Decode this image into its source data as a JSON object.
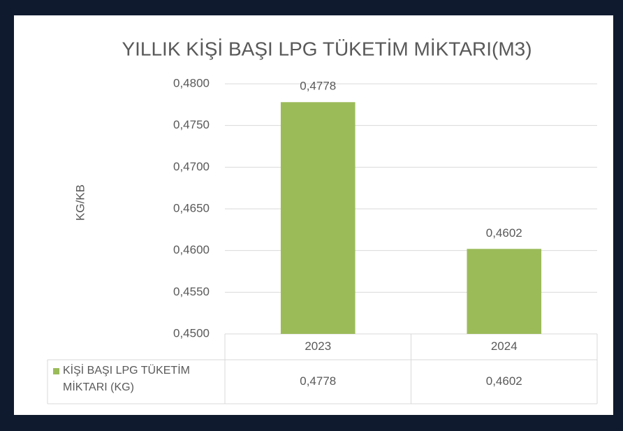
{
  "chart_data": {
    "type": "bar",
    "title": "YILLIK KİŞİ BAŞI LPG TÜKETİM MİKTARI(M3)",
    "y_label": "KG/KB",
    "categories": [
      "2023",
      "2024"
    ],
    "series": [
      {
        "name": "KİŞİ BAŞI LPG TÜKETİM MİKTARI (KG)",
        "color": "#9bbb59",
        "values": [
          0.4778,
          0.4602
        ],
        "value_labels": [
          "0,4778",
          "0,4602"
        ]
      }
    ],
    "ylim": [
      0.45,
      0.48
    ],
    "yticks": [
      {
        "value": 0.45,
        "label": "0,4500"
      },
      {
        "value": 0.455,
        "label": "0,4550"
      },
      {
        "value": 0.46,
        "label": "0,4600"
      },
      {
        "value": 0.465,
        "label": "0,4650"
      },
      {
        "value": 0.47,
        "label": "0,4700"
      },
      {
        "value": 0.475,
        "label": "0,4750"
      },
      {
        "value": 0.48,
        "label": "0,4800"
      }
    ],
    "grid": true,
    "data_table": true
  }
}
